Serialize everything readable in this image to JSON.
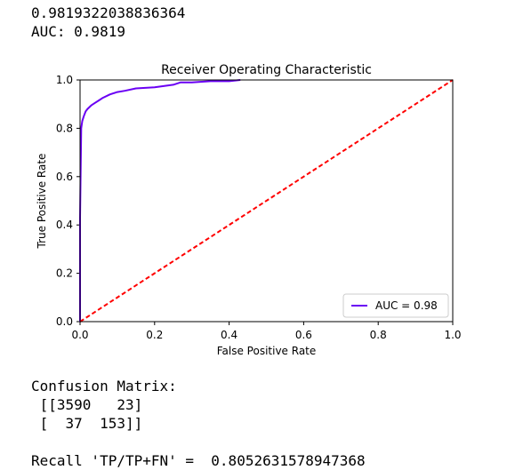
{
  "output": {
    "score_line": "0.9819322038836364",
    "auc_line": "AUC: 0.9819",
    "confusion_matrix_title": "Confusion Matrix:",
    "confusion_matrix_rows": [
      " [[3590   23]",
      " [  37  153]]"
    ],
    "recall_line": "Recall 'TP/TP+FN' =  0.8052631578947368"
  },
  "chart_data": {
    "type": "line",
    "title": "Receiver Operating Characteristic",
    "xlabel": "False Positive Rate",
    "ylabel": "True Positive Rate",
    "xlim": [
      0,
      1
    ],
    "ylim": [
      0,
      1
    ],
    "xticks": [
      "0.0",
      "0.2",
      "0.4",
      "0.6",
      "0.8",
      "1.0"
    ],
    "yticks": [
      "0.0",
      "0.2",
      "0.4",
      "0.6",
      "0.8",
      "1.0"
    ],
    "legend_position": "lower-right",
    "grid": false,
    "series": [
      {
        "name": "AUC = 0.98",
        "color": "#6a00f4",
        "style": "solid",
        "x": [
          0.0,
          0.0,
          0.003,
          0.006,
          0.01,
          0.015,
          0.02,
          0.03,
          0.04,
          0.05,
          0.06,
          0.08,
          0.1,
          0.12,
          0.15,
          0.2,
          0.25,
          0.27,
          0.3,
          0.35,
          0.4,
          0.43
        ],
        "y": [
          0.0,
          0.43,
          0.8,
          0.83,
          0.85,
          0.87,
          0.88,
          0.895,
          0.905,
          0.915,
          0.925,
          0.94,
          0.95,
          0.955,
          0.965,
          0.97,
          0.98,
          0.99,
          0.99,
          0.995,
          0.995,
          1.0
        ]
      },
      {
        "name": "",
        "color": "#ff0000",
        "style": "dashed",
        "x": [
          0,
          1
        ],
        "y": [
          0,
          1
        ]
      }
    ]
  }
}
